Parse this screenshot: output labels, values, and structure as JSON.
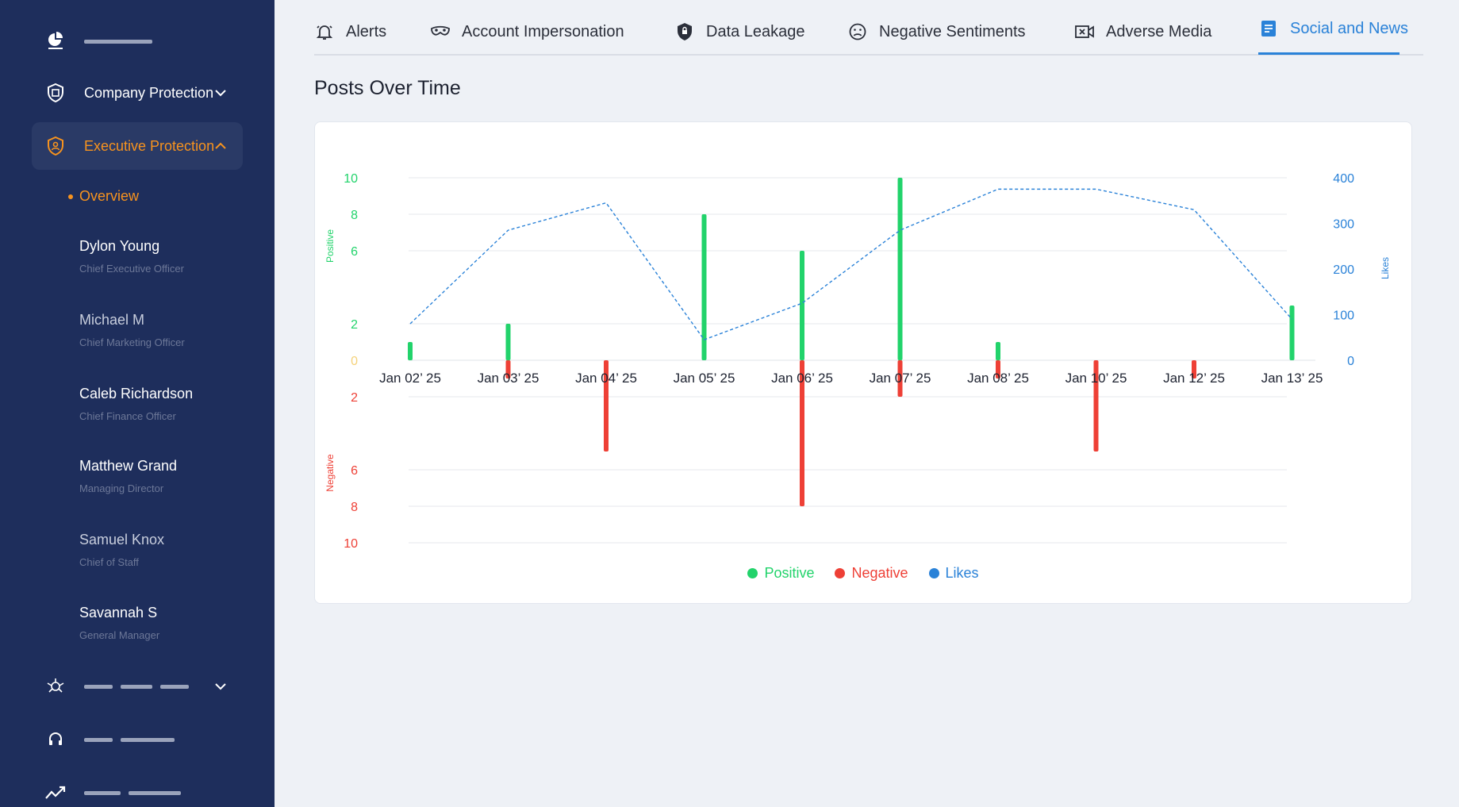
{
  "sidebar": {
    "company_protection_label": "Company Protection",
    "executive_protection_label": "Executive Protection",
    "overview_label": "Overview",
    "executives": [
      {
        "name": "Dylon Young",
        "role": "Chief Executive Officer"
      },
      {
        "name": "Michael M",
        "role": "Chief Marketing Officer"
      },
      {
        "name": "Caleb Richardson",
        "role": "Chief Finance Officer"
      },
      {
        "name": "Matthew Grand",
        "role": "Managing Director"
      },
      {
        "name": "Samuel Knox",
        "role": "Chief of Staff"
      },
      {
        "name": "Savannah S",
        "role": "General Manager"
      }
    ],
    "accent_color": "#f7931e",
    "background_color": "#1e2e5c"
  },
  "tabs": [
    {
      "label": "Alerts",
      "icon": "bell-icon"
    },
    {
      "label": "Account Impersonation",
      "icon": "mask-icon"
    },
    {
      "label": "Data Leakage",
      "icon": "shield-lock-icon"
    },
    {
      "label": "Negative Sentiments",
      "icon": "sad-face-icon"
    },
    {
      "label": "Adverse Media",
      "icon": "video-icon"
    },
    {
      "label": "Social and News",
      "icon": "document-icon",
      "active": true
    }
  ],
  "section_title": "Posts Over Time",
  "chart_data": {
    "type": "bar",
    "categories": [
      "Jan 02’ 25",
      "Jan 03’ 25",
      "Jan 04’ 25",
      "Jan 05’ 25",
      "Jan 06’ 25",
      "Jan 07’ 25",
      "Jan 08’ 25",
      "Jan 10’ 25",
      "Jan 12’ 25",
      "Jan 13’ 25"
    ],
    "series": [
      {
        "name": "Positive",
        "color": "#22d36b",
        "values": [
          1,
          2,
          0,
          8,
          6,
          10,
          1,
          0,
          0,
          3
        ]
      },
      {
        "name": "Negative",
        "color": "#ee4036",
        "values": [
          0,
          1,
          5,
          0,
          8,
          2,
          1,
          5,
          1,
          0
        ]
      },
      {
        "name": "Likes",
        "color": "#2a82d8",
        "values": [
          80,
          285,
          345,
          45,
          125,
          285,
          375,
          375,
          330,
          90
        ]
      }
    ],
    "left_axis_top": {
      "label": "Positive",
      "ticks": [
        "10",
        "8",
        "6",
        "2",
        "0"
      ]
    },
    "left_axis_bottom": {
      "label": "Negative",
      "ticks": [
        "2",
        "6",
        "8",
        "10"
      ]
    },
    "right_axis": {
      "label": "Likes",
      "ticks": [
        "400",
        "300",
        "200",
        "100",
        "0"
      ],
      "ylim": [
        0,
        400
      ]
    },
    "positive_ylim": [
      0,
      10
    ],
    "negative_ylim": [
      0,
      10
    ],
    "grid": true,
    "legend_position": "bottom"
  }
}
